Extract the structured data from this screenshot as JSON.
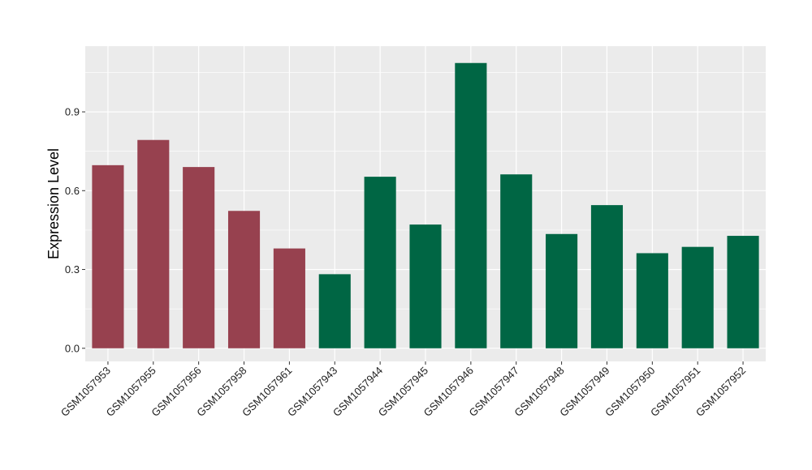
{
  "chart_data": {
    "type": "bar",
    "title": "",
    "xlabel": "",
    "ylabel": "Expression Level",
    "ylim": [
      -0.05,
      1.15
    ],
    "yticks": [
      0.0,
      0.3,
      0.6,
      0.9
    ],
    "ytick_labels": [
      "0.0",
      "0.3",
      "0.6",
      "0.9"
    ],
    "grid": true,
    "categories": [
      "GSM1057953",
      "GSM1057955",
      "GSM1057956",
      "GSM1057958",
      "GSM1057961",
      "GSM1057943",
      "GSM1057944",
      "GSM1057945",
      "GSM1057946",
      "GSM1057947",
      "GSM1057948",
      "GSM1057949",
      "GSM1057950",
      "GSM1057951",
      "GSM1057952"
    ],
    "values": [
      0.697,
      0.793,
      0.69,
      0.523,
      0.38,
      0.282,
      0.653,
      0.471,
      1.086,
      0.662,
      0.435,
      0.545,
      0.362,
      0.386,
      0.428
    ],
    "bar_colors": [
      "#97414f",
      "#97414f",
      "#97414f",
      "#97414f",
      "#97414f",
      "#006644",
      "#006644",
      "#006644",
      "#006644",
      "#006644",
      "#006644",
      "#006644",
      "#006644",
      "#006644",
      "#006644"
    ],
    "panel_background": "#ebebeb",
    "grid_color": "#ffffff"
  }
}
